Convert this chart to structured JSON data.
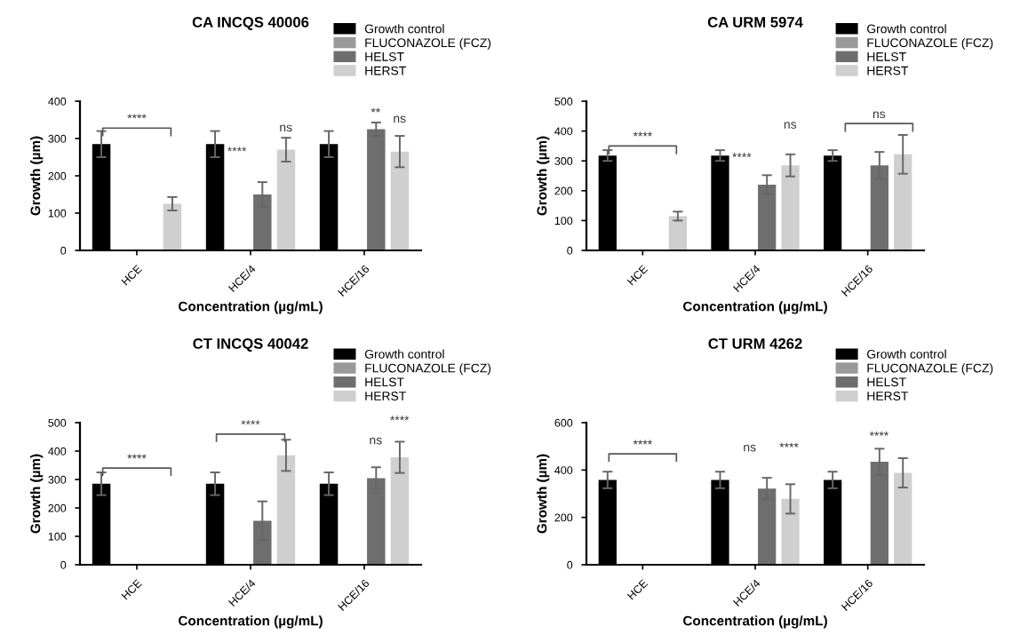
{
  "chart_data": [
    {
      "type": "bar",
      "title": "CA INCQS 40006",
      "xlabel": "Concentration (µg/mL)",
      "ylabel": "Growth (µm)",
      "categories": [
        "HCE",
        "HCE/4",
        "HCE/16"
      ],
      "ylim": [
        0,
        400
      ],
      "yticks": [
        0,
        100,
        200,
        300,
        400
      ],
      "legend": "top right",
      "grid": false,
      "series": [
        {
          "name": "Growth control",
          "color": "#000000",
          "values": [
            285,
            285,
            285
          ],
          "errors": [
            35,
            35,
            35
          ]
        },
        {
          "name": "FLUCONAZOLE (FCZ)",
          "color": "#9a9a9a",
          "values": [
            0,
            0,
            0
          ],
          "errors": [
            null,
            null,
            null
          ]
        },
        {
          "name": "HELST",
          "color": "#6e6e6e",
          "values": [
            0,
            150,
            325
          ],
          "errors": [
            null,
            33,
            18
          ]
        },
        {
          "name": "HERST",
          "color": "#cfcfcf",
          "values": [
            125,
            270,
            265
          ],
          "errors": [
            18,
            32,
            42
          ]
        }
      ],
      "annotations": [
        "****",
        "****",
        "ns",
        "**",
        "ns"
      ]
    },
    {
      "type": "bar",
      "title": "CA URM 5974",
      "xlabel": "Concentration (µg/mL)",
      "ylabel": "Growth (µm)",
      "categories": [
        "HCE",
        "HCE/4",
        "HCE/16"
      ],
      "ylim": [
        0,
        500
      ],
      "yticks": [
        0,
        100,
        200,
        300,
        400,
        500
      ],
      "legend": "top right",
      "grid": false,
      "series": [
        {
          "name": "Growth control",
          "color": "#000000",
          "values": [
            318,
            318,
            318
          ],
          "errors": [
            18,
            18,
            18
          ]
        },
        {
          "name": "FLUCONAZOLE (FCZ)",
          "color": "#9a9a9a",
          "values": [
            0,
            0,
            0
          ],
          "errors": [
            null,
            null,
            null
          ]
        },
        {
          "name": "HELST",
          "color": "#6e6e6e",
          "values": [
            0,
            220,
            285
          ],
          "errors": [
            null,
            32,
            45
          ]
        },
        {
          "name": "HERST",
          "color": "#cfcfcf",
          "values": [
            115,
            285,
            322
          ],
          "errors": [
            15,
            37,
            65
          ]
        }
      ],
      "annotations": [
        "****",
        "****",
        "ns",
        "ns"
      ]
    },
    {
      "type": "bar",
      "title": "CT INCQS 40042",
      "xlabel": "Concentration (µg/mL)",
      "ylabel": "Growth (µm)",
      "categories": [
        "HCE",
        "HCE/4",
        "HCE/16"
      ],
      "ylim": [
        0,
        500
      ],
      "yticks": [
        0,
        100,
        200,
        300,
        400,
        500
      ],
      "legend": "top right",
      "grid": false,
      "series": [
        {
          "name": "Growth control",
          "color": "#000000",
          "values": [
            285,
            285,
            285
          ],
          "errors": [
            40,
            40,
            40
          ]
        },
        {
          "name": "FLUCONAZOLE (FCZ)",
          "color": "#9a9a9a",
          "values": [
            0,
            0,
            0
          ],
          "errors": [
            null,
            null,
            null
          ]
        },
        {
          "name": "HELST",
          "color": "#6e6e6e",
          "values": [
            0,
            155,
            305
          ],
          "errors": [
            null,
            68,
            38
          ]
        },
        {
          "name": "HERST",
          "color": "#cfcfcf",
          "values": [
            0,
            385,
            378
          ],
          "errors": [
            null,
            55,
            55
          ]
        }
      ],
      "annotations": [
        "****",
        "****",
        "ns",
        "****"
      ]
    },
    {
      "type": "bar",
      "title": "CT URM 4262",
      "xlabel": "Concentration (µg/mL)",
      "ylabel": "Growth (µm)",
      "categories": [
        "HCE",
        "HCE/4",
        "HCE/16"
      ],
      "ylim": [
        0,
        600
      ],
      "yticks": [
        0,
        200,
        400,
        600
      ],
      "legend": "top right",
      "grid": false,
      "series": [
        {
          "name": "Growth control",
          "color": "#000000",
          "values": [
            358,
            358,
            358
          ],
          "errors": [
            35,
            35,
            35
          ]
        },
        {
          "name": "FLUCONAZOLE (FCZ)",
          "color": "#9a9a9a",
          "values": [
            0,
            0,
            0
          ],
          "errors": [
            null,
            null,
            null
          ]
        },
        {
          "name": "HELST",
          "color": "#6e6e6e",
          "values": [
            0,
            322,
            435
          ],
          "errors": [
            null,
            45,
            55
          ]
        },
        {
          "name": "HERST",
          "color": "#cfcfcf",
          "values": [
            0,
            278,
            388
          ],
          "errors": [
            null,
            62,
            62
          ]
        }
      ],
      "annotations": [
        "****",
        "ns",
        "****",
        "****"
      ]
    }
  ]
}
